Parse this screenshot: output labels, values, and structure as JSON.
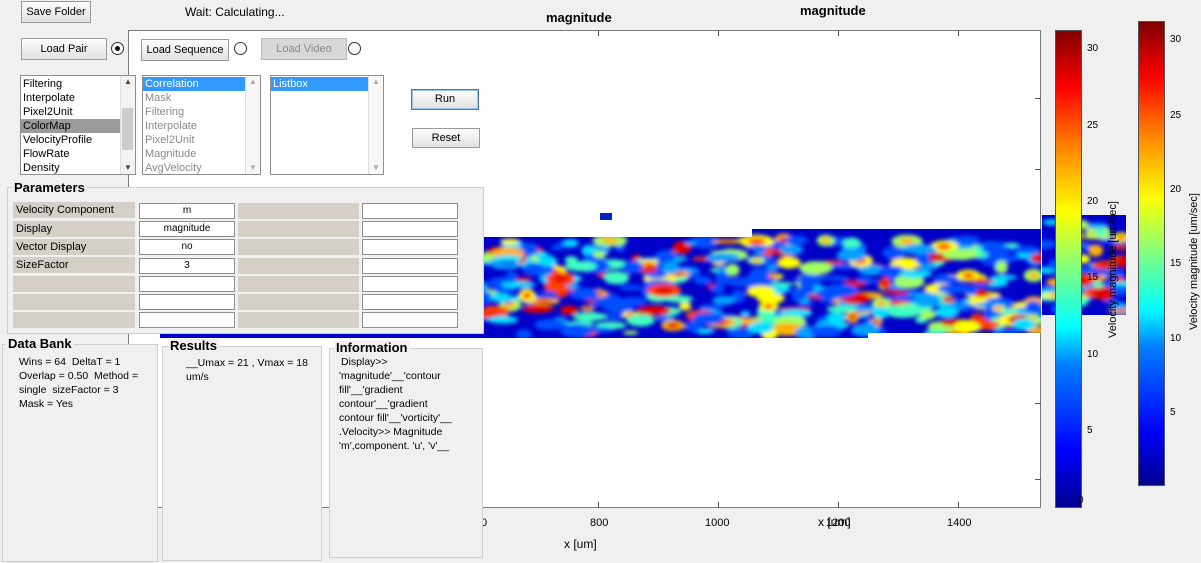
{
  "toolbar": {
    "save_folder": "Save Folder",
    "status": "Wait:  Calculating..."
  },
  "load": {
    "pair": "Load Pair",
    "sequence": "Load Sequence",
    "video": "Load Video",
    "selected": "pair"
  },
  "lists": {
    "left": {
      "items": [
        "Filtering",
        "Interpolate",
        "Pixel2Unit",
        "ColorMap",
        "VelocityProfile",
        "FlowRate",
        "Density"
      ],
      "selected": "ColorMap"
    },
    "middle": {
      "items": [
        "Correlation",
        "Mask",
        "Filtering",
        "Interpolate",
        "Pixel2Unit",
        "Magnitude",
        "AvgVelocity"
      ],
      "selected": "Correlation"
    },
    "right": {
      "items": [
        "Listbox"
      ],
      "selected": "Listbox"
    }
  },
  "actions": {
    "run": "Run",
    "reset": "Reset"
  },
  "parameters": {
    "title": "Parameters",
    "rows": [
      {
        "label": "Velocity Component",
        "value": "m"
      },
      {
        "label": "Display",
        "value": "magnitude"
      },
      {
        "label": "Vector Display",
        "value": "no"
      },
      {
        "label": "SizeFactor",
        "value": "3"
      }
    ]
  },
  "databank": {
    "title": "Data Bank",
    "lines": [
      "Wins = 64  DeltaT = 1",
      "Overlap = 0.50  Method =",
      "single  sizeFactor = 3",
      "Mask = Yes"
    ]
  },
  "results": {
    "title": "Results",
    "lines": [
      "__Umax = 21 , Vmax = 18",
      "um/s"
    ]
  },
  "information": {
    "title": "Information",
    "lines": [
      "Display>>",
      "'magnitude'__'contour",
      "fill'__'gradient",
      "contour'__'gradient",
      "contour fill'__'vorticity'__",
      ".Velocity>> Magnitude",
      "'m',component. 'u', 'v'__"
    ]
  },
  "plot": {
    "title_left": "magnitude",
    "title_right": "magnitude",
    "xlabel": "x [um]",
    "xlabel_overlap": "x [um]",
    "xticks": [
      "800",
      "1000",
      "1200",
      "1400"
    ],
    "cut_tick": "0"
  },
  "colorbars": [
    {
      "label": "Velocity magnitude [um/sec]",
      "ticks": [
        "30",
        "25",
        "20",
        "15",
        "10",
        "5",
        "0"
      ]
    },
    {
      "label": "Velocity magnitude [um/sec]",
      "ticks": [
        "30",
        "25",
        "20",
        "15",
        "10",
        "5"
      ]
    }
  ],
  "colors": {
    "field_bg": "#0000c8",
    "selection": "#3399ff"
  }
}
